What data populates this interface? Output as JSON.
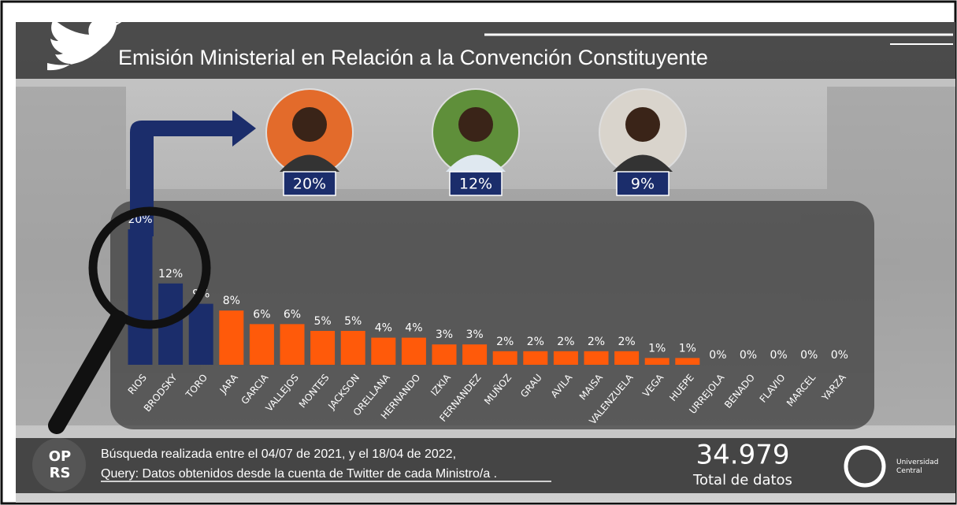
{
  "chart_data": {
    "type": "bar",
    "title": "Emisión Ministerial en Relación a la Convención Constituyente",
    "categories": [
      "RIOS",
      "BRODSKY",
      "TORO",
      "JARA",
      "GARCIA",
      "VALLEJOS",
      "MONTES",
      "JACKSON",
      "ORELLANA",
      "HERNANDO",
      "IZKIA",
      "FERNANDEZ",
      "MUÑOZ",
      "GRAU",
      "AVILA",
      "MAISA",
      "VALENZUELA",
      "VEGA",
      "HUEPE",
      "URREJOLA",
      "BENADO",
      "FLAVIO",
      "MARCEL",
      "YARZA"
    ],
    "values": [
      20,
      12,
      9,
      8,
      6,
      6,
      5,
      5,
      4,
      4,
      3,
      3,
      2,
      2,
      2,
      2,
      2,
      1,
      1,
      0,
      0,
      0,
      0,
      0
    ],
    "value_labels": [
      "20%",
      "12%",
      "9%",
      "8%",
      "6%",
      "6%",
      "5%",
      "5%",
      "4%",
      "4%",
      "3%",
      "3%",
      "2%",
      "2%",
      "2%",
      "2%",
      "2%",
      "1%",
      "1%",
      "0%",
      "0%",
      "0%",
      "0%",
      "0%"
    ],
    "colors": [
      "#1b2d6b",
      "#1b2d6b",
      "#1b2d6b",
      "#ff5a0a",
      "#ff5a0a",
      "#ff5a0a",
      "#ff5a0a",
      "#ff5a0a",
      "#ff5a0a",
      "#ff5a0a",
      "#ff5a0a",
      "#ff5a0a",
      "#ff5a0a",
      "#ff5a0a",
      "#ff5a0a",
      "#ff5a0a",
      "#ff5a0a",
      "#ff5a0a",
      "#ff5a0a",
      "#ff5a0a",
      "#ff5a0a",
      "#ff5a0a",
      "#ff5a0a",
      "#ff5a0a"
    ],
    "featured_labels": [
      "20%",
      "12%",
      "9%"
    ]
  },
  "footer": {
    "search_note": "Búsqueda realizada entre el 04/07 de 2021, y el 18/04 de 2022,",
    "query_note": "Query: Datos obtenidos desde la cuenta de Twitter de cada Ministro/a .",
    "total": "34.979",
    "total_label": "Total de datos",
    "university": "Universidad Central",
    "logo": [
      "OP",
      "RS"
    ]
  }
}
